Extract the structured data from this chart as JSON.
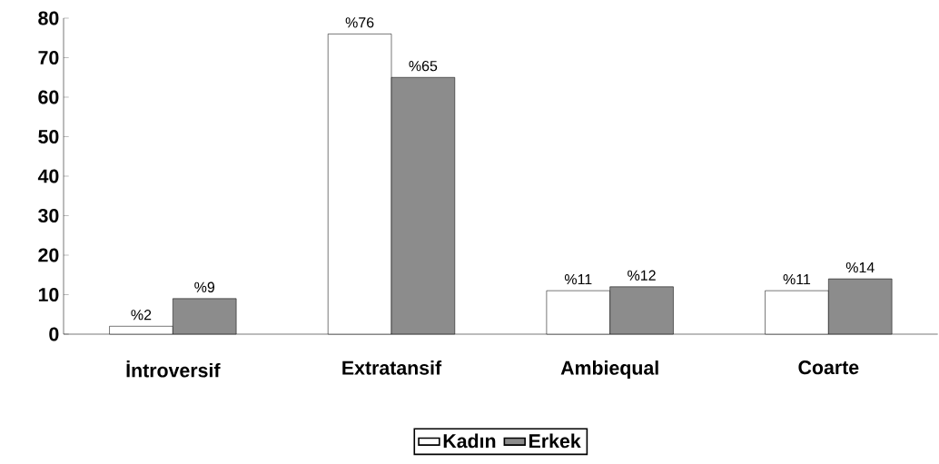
{
  "chart_data": {
    "type": "bar",
    "categories": [
      "İntroversif",
      "Extratansif",
      "Ambiequal",
      "Coarte"
    ],
    "series": [
      {
        "name": "Kadın",
        "color": "#ffffff",
        "values": [
          2,
          76,
          11,
          11
        ],
        "value_labels": [
          "%2",
          "%76",
          "%11",
          "%11"
        ]
      },
      {
        "name": "Erkek",
        "color": "#8c8c8c",
        "values": [
          9,
          65,
          12,
          14
        ],
        "value_labels": [
          "%9",
          "%65",
          "%12",
          "%14"
        ]
      }
    ],
    "ylim": [
      0,
      80
    ],
    "yticks": [
      0,
      10,
      20,
      30,
      40,
      50,
      60,
      70,
      80
    ],
    "legend": "bottom",
    "grid": false
  }
}
